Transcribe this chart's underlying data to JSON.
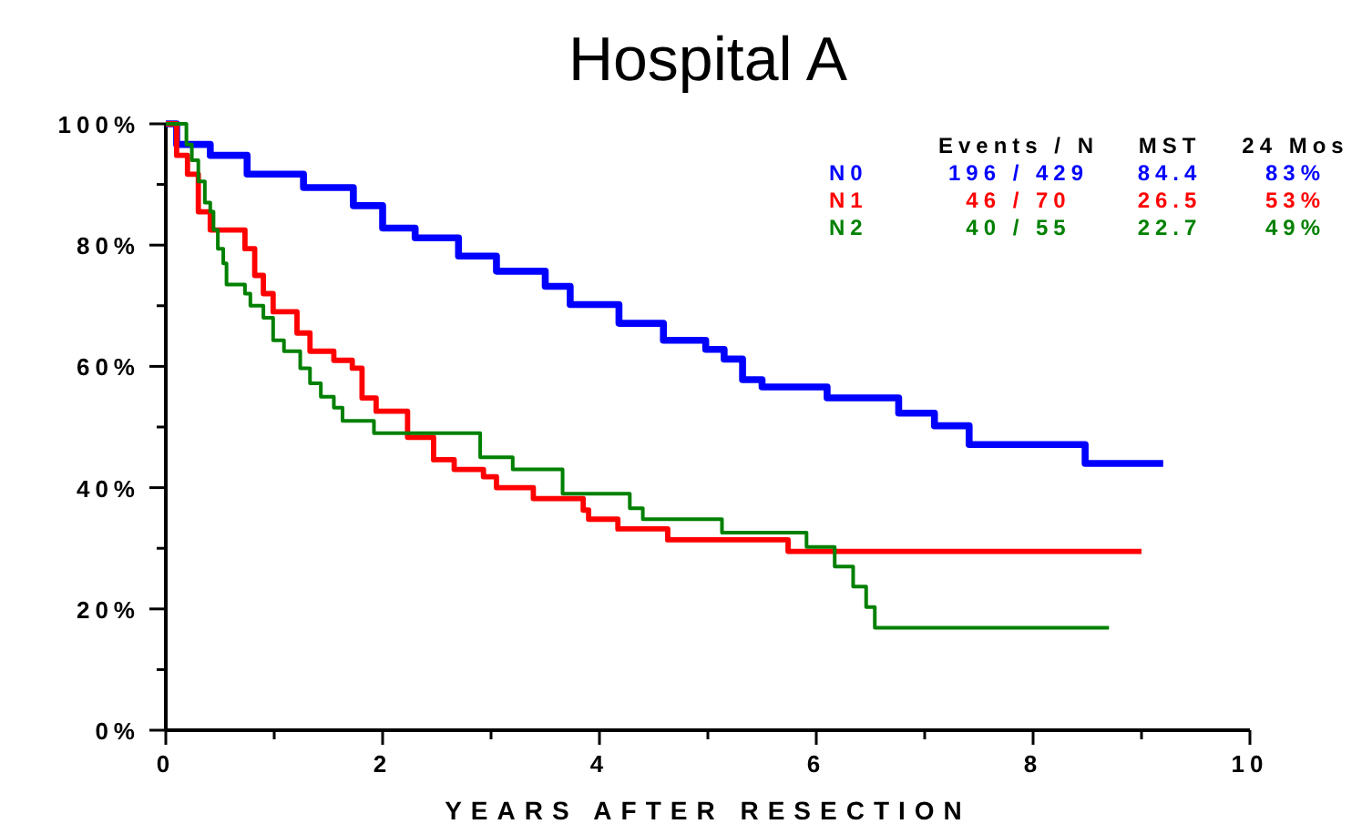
{
  "chart_data": {
    "type": "step",
    "title": "Hospital A",
    "xlabel": "YEARS AFTER RESECTION",
    "xlim": [
      0,
      10
    ],
    "xticks": [
      0,
      {
        "value": 1,
        "label": null
      },
      2,
      {
        "value": 3,
        "label": null
      },
      4,
      {
        "value": 5,
        "label": null
      },
      6,
      {
        "value": 7,
        "label": null
      },
      8,
      {
        "value": 9,
        "label": null
      },
      10
    ],
    "ylim": [
      0,
      100
    ],
    "yticks": [
      {
        "value": 0,
        "label": "0%"
      },
      {
        "value": 10,
        "label": null
      },
      {
        "value": 20,
        "label": "20%"
      },
      {
        "value": 30,
        "label": null
      },
      {
        "value": 40,
        "label": "40%"
      },
      {
        "value": 50,
        "label": null
      },
      {
        "value": 60,
        "label": "60%"
      },
      {
        "value": 70,
        "label": null
      },
      {
        "value": 80,
        "label": "80%"
      },
      {
        "value": 90,
        "label": null
      },
      {
        "value": 100,
        "label": "100%"
      }
    ],
    "grid": false,
    "legend": "top right",
    "line_style": "solid",
    "marker": "none",
    "series": [
      {
        "name": "N0",
        "color": "#0000ff",
        "x": [
          0,
          0.1,
          0.41,
          0.75,
          1.27,
          1.73,
          2.0,
          2.3,
          2.7,
          3.05,
          3.5,
          3.73,
          4.18,
          4.59,
          4.98,
          5.15,
          5.32,
          5.5,
          6.1,
          6.76,
          7.09,
          7.41,
          8.2,
          8.48,
          9.2
        ],
        "values": [
          100,
          96.6,
          94.8,
          91.7,
          89.5,
          86.5,
          82.8,
          81.2,
          78.2,
          75.7,
          73.2,
          70.2,
          67.1,
          64.3,
          62.8,
          61.2,
          57.8,
          56.6,
          54.8,
          52.3,
          50.2,
          47.1,
          47.1,
          44,
          44
        ]
      },
      {
        "name": "N1",
        "color": "#ff0000",
        "x": [
          0,
          0.1,
          0.2,
          0.3,
          0.41,
          0.73,
          0.82,
          0.9,
          0.99,
          1.21,
          1.33,
          1.55,
          1.72,
          1.81,
          1.94,
          2.23,
          2.47,
          2.66,
          2.93,
          3.05,
          3.39,
          3.85,
          3.9,
          4.17,
          4.63,
          5.74,
          9.0
        ],
        "values": [
          100,
          94.8,
          91.7,
          85.5,
          82.5,
          79.4,
          75,
          72,
          69,
          65.5,
          62.5,
          61,
          59.7,
          54.8,
          52.6,
          48.3,
          44.6,
          43,
          41.8,
          40,
          38.2,
          36.3,
          34.8,
          33.2,
          31.4,
          29.5,
          29.5
        ]
      },
      {
        "name": "N2",
        "color": "#008000",
        "x": [
          0,
          0.19,
          0.24,
          0.3,
          0.36,
          0.41,
          0.44,
          0.48,
          0.53,
          0.56,
          0.73,
          0.78,
          0.9,
          0.99,
          1.09,
          1.24,
          1.33,
          1.43,
          1.55,
          1.63,
          1.92,
          2.86,
          2.9,
          3.2,
          3.66,
          4.28,
          4.4,
          5.13,
          5.91,
          6.17,
          6.34,
          6.46,
          6.54,
          8.7
        ],
        "values": [
          100,
          96.6,
          94,
          90.5,
          87,
          85.5,
          82.5,
          79.4,
          77,
          73.5,
          72,
          70,
          68,
          64.3,
          62.5,
          59.7,
          57.2,
          55,
          53.2,
          51,
          49,
          49,
          45,
          43,
          39,
          36.6,
          34.8,
          32.6,
          30.2,
          27,
          23.7,
          20.3,
          16.9,
          16.9
        ]
      }
    ],
    "annotations": [
      "Events / N",
      "MST",
      "24 Mos",
      "196 / 429",
      "84.4",
      "83%",
      "46 / 70",
      "26.5",
      "53%",
      "40 / 55",
      "22.7",
      "49%"
    ]
  }
}
